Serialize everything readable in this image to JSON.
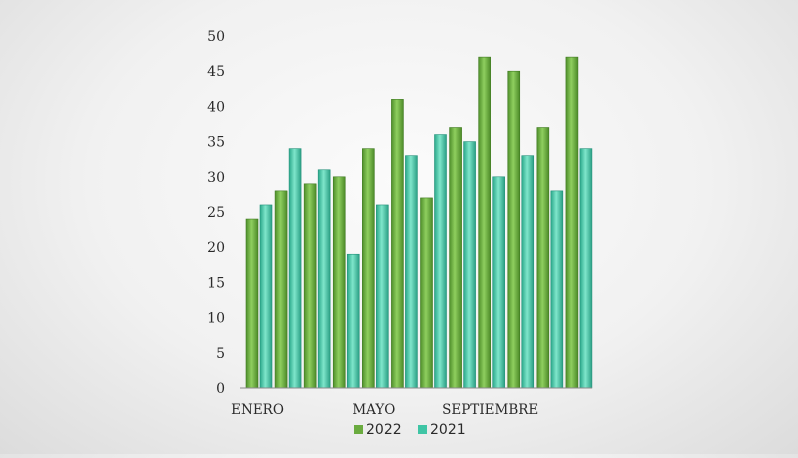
{
  "chart_data": {
    "type": "bar",
    "title": "",
    "xlabel": "",
    "ylabel": "",
    "ylim": [
      0,
      50
    ],
    "yticks": [
      0,
      5,
      10,
      15,
      20,
      25,
      30,
      35,
      40,
      45,
      50
    ],
    "categories": [
      "ENERO",
      "",
      "",
      "",
      "MAYO",
      "",
      "",
      "",
      "SEPTIEMBRE",
      "",
      "",
      ""
    ],
    "series": [
      {
        "name": "2022",
        "color": "#6aab3f",
        "values": [
          24,
          28,
          29,
          30,
          34,
          41,
          27,
          37,
          47,
          45,
          37,
          47
        ]
      },
      {
        "name": "2021",
        "color": "#3fc5a5",
        "values": [
          26,
          34,
          31,
          19,
          26,
          33,
          36,
          35,
          30,
          33,
          28,
          34
        ]
      }
    ],
    "grid": false,
    "legend_position": "bottom"
  }
}
